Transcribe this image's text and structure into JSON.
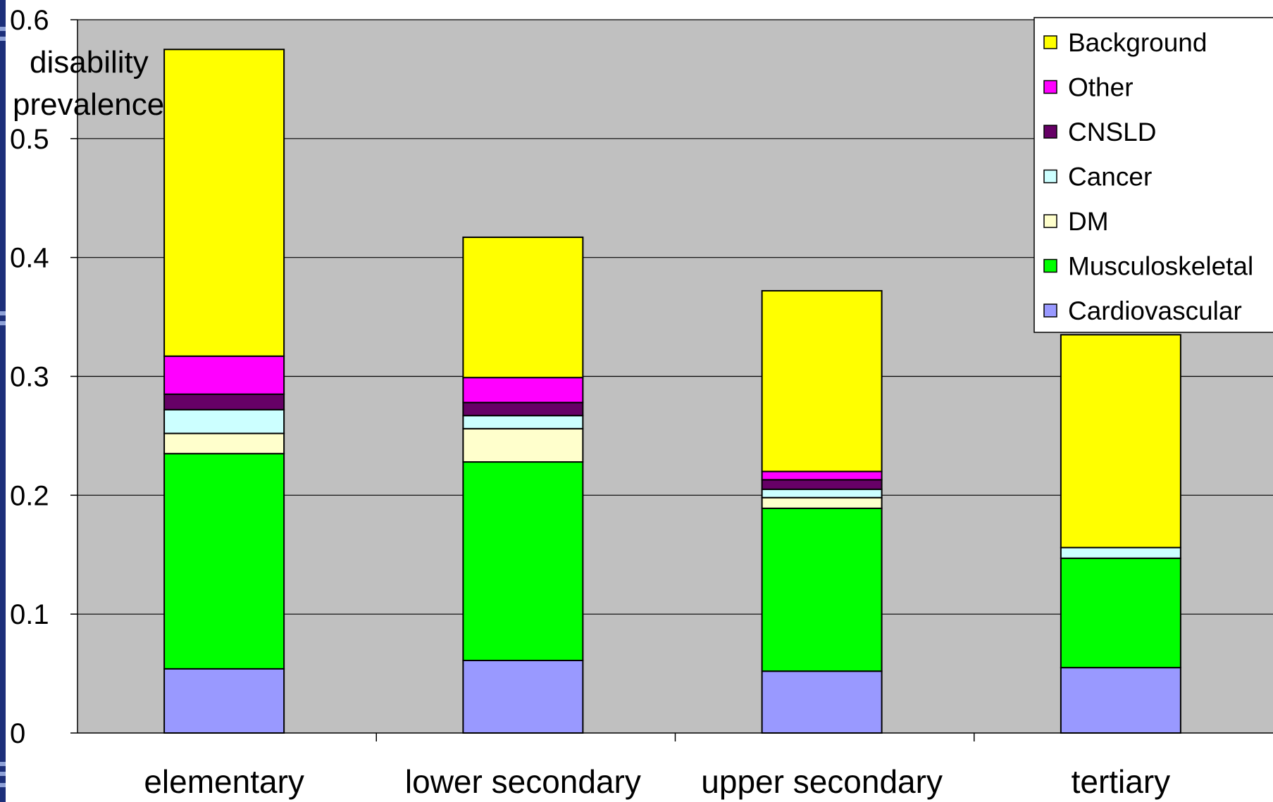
{
  "chart_data": {
    "type": "bar",
    "stacked": true,
    "ylabel": "disability prevalence",
    "xlabel": "",
    "ylim": [
      0,
      0.6
    ],
    "yticks": [
      "0",
      "0.1",
      "0.2",
      "0.3",
      "0.4",
      "0.5",
      "0.6"
    ],
    "grid": true,
    "legend_position": "top-right",
    "categories": [
      "elementary",
      "lower secondary",
      "upper secondary",
      "tertiary"
    ],
    "series": [
      {
        "name": "Cardiovascular",
        "color": "#9999ff",
        "values": [
          0.054,
          0.061,
          0.052,
          0.055
        ]
      },
      {
        "name": "Musculoskeletal",
        "color": "#00ff00",
        "values": [
          0.181,
          0.167,
          0.137,
          0.092
        ]
      },
      {
        "name": "DM",
        "color": "#ffffcc",
        "values": [
          0.017,
          0.028,
          0.009,
          0.0
        ]
      },
      {
        "name": "Cancer",
        "color": "#ccffff",
        "values": [
          0.02,
          0.011,
          0.007,
          0.009
        ]
      },
      {
        "name": "CNSLD",
        "color": "#660066",
        "values": [
          0.013,
          0.011,
          0.008,
          0.0
        ]
      },
      {
        "name": "Other",
        "color": "#ff00ff",
        "values": [
          0.032,
          0.021,
          0.007,
          0.0
        ]
      },
      {
        "name": "Background",
        "color": "#ffff00",
        "values": [
          0.258,
          0.118,
          0.152,
          0.179
        ]
      }
    ],
    "plot_background": "#c0c0c0"
  }
}
